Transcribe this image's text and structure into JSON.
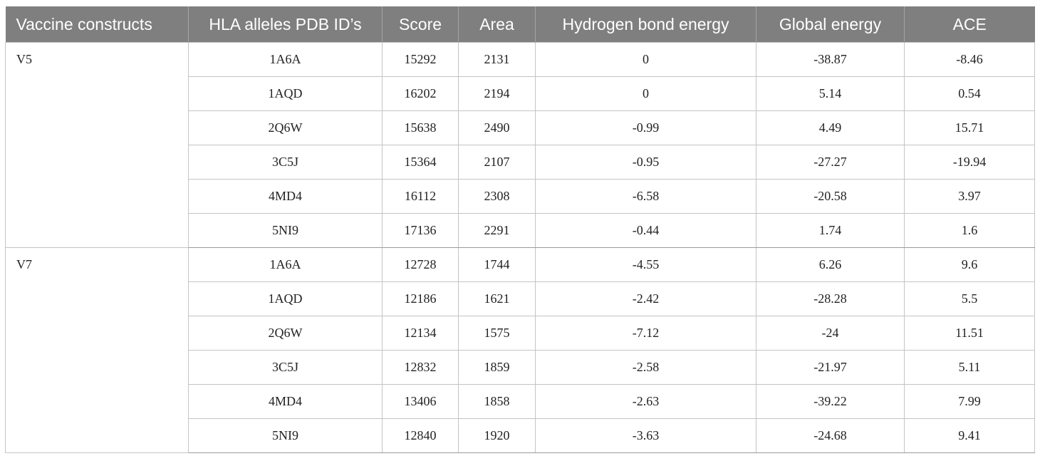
{
  "table": {
    "headers": [
      "Vaccine constructs",
      "HLA alleles PDB ID’s",
      "Score",
      "Area",
      "Hydrogen bond energy",
      "Global energy",
      "ACE"
    ],
    "groups": [
      {
        "name": "V5",
        "rows": [
          [
            "1A6A",
            "15292",
            "2131",
            "0",
            "-38.87",
            "-8.46"
          ],
          [
            "1AQD",
            "16202",
            "2194",
            "0",
            "5.14",
            "0.54"
          ],
          [
            "2Q6W",
            "15638",
            "2490",
            "-0.99",
            "4.49",
            "15.71"
          ],
          [
            "3C5J",
            "15364",
            "2107",
            "-0.95",
            "-27.27",
            "-19.94"
          ],
          [
            "4MD4",
            "16112",
            "2308",
            "-6.58",
            "-20.58",
            "3.97"
          ],
          [
            "5NI9",
            "17136",
            "2291",
            "-0.44",
            "1.74",
            "1.6"
          ]
        ]
      },
      {
        "name": "V7",
        "rows": [
          [
            "1A6A",
            "12728",
            "1744",
            "-4.55",
            "6.26",
            "9.6"
          ],
          [
            "1AQD",
            "12186",
            "1621",
            "-2.42",
            "-28.28",
            "5.5"
          ],
          [
            "2Q6W",
            "12134",
            "1575",
            "-7.12",
            "-24",
            "11.51"
          ],
          [
            "3C5J",
            "12832",
            "1859",
            "-2.58",
            "-21.97",
            "5.11"
          ],
          [
            "4MD4",
            "13406",
            "1858",
            "-2.63",
            "-39.22",
            "7.99"
          ],
          [
            "5NI9",
            "12840",
            "1920",
            "-3.63",
            "-24.68",
            "9.41"
          ]
        ]
      }
    ]
  }
}
